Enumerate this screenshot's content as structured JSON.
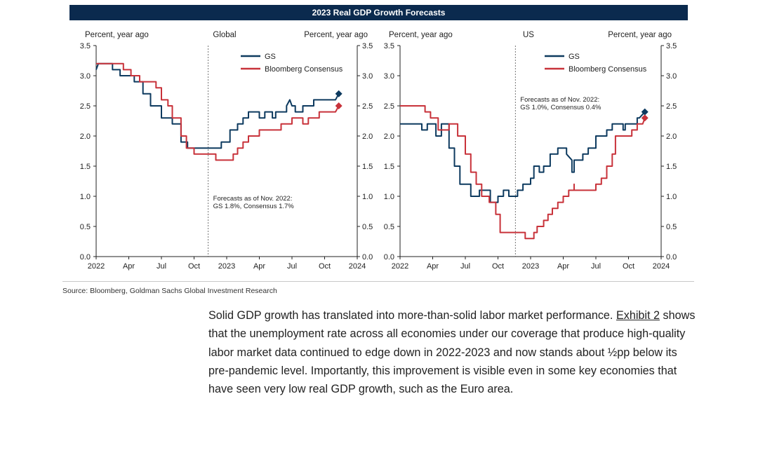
{
  "banner_title": "2023 Real GDP Growth Forecasts",
  "chart_data": [
    {
      "type": "line",
      "panel": "Global",
      "left_axis_label": "Percent, year ago",
      "right_axis_label": "Percent, year ago",
      "ylim": [
        0,
        3.5
      ],
      "yticks": [
        "0.0",
        "0.5",
        "1.0",
        "1.5",
        "2.0",
        "2.5",
        "3.0",
        "3.5"
      ],
      "xlim": [
        0,
        24
      ],
      "xticks": [
        {
          "x": 0,
          "label": "2022"
        },
        {
          "x": 3,
          "label": "Apr"
        },
        {
          "x": 6,
          "label": "Jul"
        },
        {
          "x": 9,
          "label": "Oct"
        },
        {
          "x": 12,
          "label": "2023"
        },
        {
          "x": 15,
          "label": "Apr"
        },
        {
          "x": 18,
          "label": "Jul"
        },
        {
          "x": 21,
          "label": "Oct"
        },
        {
          "x": 24,
          "label": "2024"
        }
      ],
      "marker_line_x": 10.3,
      "annotation": [
        "Forecasts as of Nov. 2022:",
        "GS 1.8%, Consensus 1.7%"
      ],
      "annotation_pos": "bottom-center",
      "legend_pos": "top-right",
      "series": [
        {
          "name": "GS",
          "color": "#0d3a5f",
          "points": [
            [
              0,
              3.1
            ],
            [
              0.2,
              3.2
            ],
            [
              1.5,
              3.2
            ],
            [
              1.5,
              3.1
            ],
            [
              2.2,
              3.1
            ],
            [
              2.2,
              3.0
            ],
            [
              3.5,
              3.0
            ],
            [
              3.5,
              2.9
            ],
            [
              4.3,
              2.9
            ],
            [
              4.3,
              2.7
            ],
            [
              5.0,
              2.7
            ],
            [
              5.0,
              2.5
            ],
            [
              6.0,
              2.5
            ],
            [
              6.0,
              2.3
            ],
            [
              7.0,
              2.3
            ],
            [
              7.0,
              2.2
            ],
            [
              7.8,
              2.2
            ],
            [
              7.8,
              1.9
            ],
            [
              8.4,
              1.9
            ],
            [
              8.4,
              1.8
            ],
            [
              11.5,
              1.8
            ],
            [
              11.5,
              1.9
            ],
            [
              12.3,
              1.9
            ],
            [
              12.3,
              2.1
            ],
            [
              13.0,
              2.1
            ],
            [
              13.0,
              2.2
            ],
            [
              13.5,
              2.2
            ],
            [
              13.5,
              2.3
            ],
            [
              14.0,
              2.3
            ],
            [
              14.0,
              2.4
            ],
            [
              15.0,
              2.4
            ],
            [
              15.0,
              2.3
            ],
            [
              15.5,
              2.3
            ],
            [
              15.5,
              2.4
            ],
            [
              16.2,
              2.4
            ],
            [
              16.2,
              2.3
            ],
            [
              16.5,
              2.3
            ],
            [
              16.5,
              2.4
            ],
            [
              17.5,
              2.4
            ],
            [
              17.5,
              2.5
            ],
            [
              17.8,
              2.6
            ],
            [
              18.0,
              2.5
            ],
            [
              18.3,
              2.5
            ],
            [
              18.3,
              2.4
            ],
            [
              19.0,
              2.4
            ],
            [
              19.0,
              2.5
            ],
            [
              20.0,
              2.5
            ],
            [
              20.0,
              2.6
            ],
            [
              22.0,
              2.6
            ],
            [
              22.3,
              2.7
            ]
          ],
          "end_marker": [
            22.3,
            2.7
          ]
        },
        {
          "name": "Bloomberg Consensus",
          "color": "#c8323a",
          "points": [
            [
              0,
              3.2
            ],
            [
              2.5,
              3.2
            ],
            [
              2.5,
              3.1
            ],
            [
              3.2,
              3.1
            ],
            [
              3.2,
              3.0
            ],
            [
              4.0,
              3.0
            ],
            [
              4.0,
              2.9
            ],
            [
              5.5,
              2.9
            ],
            [
              5.5,
              2.8
            ],
            [
              6.0,
              2.8
            ],
            [
              6.0,
              2.6
            ],
            [
              6.6,
              2.6
            ],
            [
              6.6,
              2.5
            ],
            [
              7.0,
              2.5
            ],
            [
              7.0,
              2.3
            ],
            [
              7.8,
              2.3
            ],
            [
              7.8,
              2.0
            ],
            [
              8.3,
              2.0
            ],
            [
              8.3,
              1.8
            ],
            [
              9.0,
              1.8
            ],
            [
              9.0,
              1.7
            ],
            [
              11.0,
              1.7
            ],
            [
              11.0,
              1.6
            ],
            [
              12.6,
              1.6
            ],
            [
              12.6,
              1.7
            ],
            [
              13.0,
              1.7
            ],
            [
              13.0,
              1.8
            ],
            [
              13.5,
              1.8
            ],
            [
              13.5,
              1.9
            ],
            [
              14.0,
              1.9
            ],
            [
              14.0,
              2.0
            ],
            [
              15.0,
              2.0
            ],
            [
              15.0,
              2.1
            ],
            [
              17.0,
              2.1
            ],
            [
              17.0,
              2.2
            ],
            [
              18.0,
              2.2
            ],
            [
              18.0,
              2.3
            ],
            [
              19.0,
              2.3
            ],
            [
              19.0,
              2.2
            ],
            [
              19.5,
              2.2
            ],
            [
              19.5,
              2.3
            ],
            [
              20.5,
              2.3
            ],
            [
              20.5,
              2.4
            ],
            [
              22.0,
              2.4
            ],
            [
              22.3,
              2.5
            ]
          ],
          "end_marker": [
            22.3,
            2.5
          ]
        }
      ]
    },
    {
      "type": "line",
      "panel": "US",
      "left_axis_label": "Percent, year ago",
      "right_axis_label": "Percent, year ago",
      "ylim": [
        0,
        3.5
      ],
      "yticks": [
        "0.0",
        "0.5",
        "1.0",
        "1.5",
        "2.0",
        "2.5",
        "3.0",
        "3.5"
      ],
      "xlim": [
        0,
        24
      ],
      "xticks": [
        {
          "x": 0,
          "label": "2022"
        },
        {
          "x": 3,
          "label": "Apr"
        },
        {
          "x": 6,
          "label": "Jul"
        },
        {
          "x": 9,
          "label": "Oct"
        },
        {
          "x": 12,
          "label": "2023"
        },
        {
          "x": 15,
          "label": "Apr"
        },
        {
          "x": 18,
          "label": "Jul"
        },
        {
          "x": 21,
          "label": "Oct"
        },
        {
          "x": 24,
          "label": "2024"
        }
      ],
      "marker_line_x": 10.6,
      "annotation": [
        "Forecasts as of Nov. 2022:",
        "GS 1.0%, Consensus 0.4%"
      ],
      "annotation_pos": "top-center",
      "legend_pos": "top-right",
      "series": [
        {
          "name": "GS",
          "color": "#0d3a5f",
          "points": [
            [
              0,
              2.2
            ],
            [
              2.0,
              2.2
            ],
            [
              2.0,
              2.1
            ],
            [
              2.5,
              2.1
            ],
            [
              2.5,
              2.2
            ],
            [
              3.3,
              2.2
            ],
            [
              3.3,
              2.0
            ],
            [
              3.8,
              2.0
            ],
            [
              3.8,
              2.2
            ],
            [
              4.5,
              2.2
            ],
            [
              4.5,
              1.8
            ],
            [
              5.0,
              1.8
            ],
            [
              5.0,
              1.5
            ],
            [
              5.5,
              1.5
            ],
            [
              5.5,
              1.2
            ],
            [
              6.5,
              1.2
            ],
            [
              6.5,
              1.0
            ],
            [
              7.3,
              1.0
            ],
            [
              7.3,
              1.1
            ],
            [
              8.3,
              1.1
            ],
            [
              8.3,
              0.9
            ],
            [
              9.0,
              0.9
            ],
            [
              9.0,
              1.0
            ],
            [
              9.5,
              1.0
            ],
            [
              9.5,
              1.1
            ],
            [
              10.0,
              1.1
            ],
            [
              10.0,
              1.0
            ],
            [
              10.8,
              1.0
            ],
            [
              10.8,
              1.1
            ],
            [
              11.3,
              1.1
            ],
            [
              11.3,
              1.2
            ],
            [
              12.0,
              1.2
            ],
            [
              12.0,
              1.3
            ],
            [
              12.3,
              1.3
            ],
            [
              12.3,
              1.5
            ],
            [
              12.8,
              1.5
            ],
            [
              12.8,
              1.4
            ],
            [
              13.2,
              1.4
            ],
            [
              13.2,
              1.5
            ],
            [
              13.8,
              1.5
            ],
            [
              13.8,
              1.7
            ],
            [
              14.5,
              1.7
            ],
            [
              14.5,
              1.8
            ],
            [
              15.3,
              1.8
            ],
            [
              15.3,
              1.7
            ],
            [
              15.8,
              1.6
            ],
            [
              15.8,
              1.4
            ],
            [
              16.0,
              1.4
            ],
            [
              16.0,
              1.6
            ],
            [
              16.8,
              1.6
            ],
            [
              16.8,
              1.7
            ],
            [
              17.3,
              1.7
            ],
            [
              17.3,
              1.8
            ],
            [
              18.0,
              1.8
            ],
            [
              18.0,
              2.0
            ],
            [
              19.0,
              2.0
            ],
            [
              19.0,
              2.1
            ],
            [
              19.5,
              2.1
            ],
            [
              19.5,
              2.2
            ],
            [
              20.5,
              2.2
            ],
            [
              20.5,
              2.1
            ],
            [
              20.7,
              2.1
            ],
            [
              20.7,
              2.2
            ],
            [
              21.8,
              2.2
            ],
            [
              21.8,
              2.3
            ],
            [
              22.0,
              2.3
            ],
            [
              22.5,
              2.4
            ]
          ],
          "end_marker": [
            22.5,
            2.4
          ]
        },
        {
          "name": "Bloomberg Consensus",
          "color": "#c8323a",
          "points": [
            [
              0,
              2.5
            ],
            [
              2.3,
              2.5
            ],
            [
              2.3,
              2.4
            ],
            [
              2.8,
              2.4
            ],
            [
              2.8,
              2.3
            ],
            [
              3.5,
              2.3
            ],
            [
              3.5,
              2.1
            ],
            [
              4.5,
              2.1
            ],
            [
              4.5,
              2.2
            ],
            [
              5.3,
              2.2
            ],
            [
              5.3,
              2.0
            ],
            [
              6.0,
              2.0
            ],
            [
              6.0,
              1.7
            ],
            [
              6.5,
              1.7
            ],
            [
              6.5,
              1.4
            ],
            [
              7.0,
              1.4
            ],
            [
              7.0,
              1.2
            ],
            [
              7.5,
              1.2
            ],
            [
              7.5,
              1.0
            ],
            [
              8.2,
              1.0
            ],
            [
              8.2,
              0.9
            ],
            [
              8.8,
              0.9
            ],
            [
              8.8,
              0.7
            ],
            [
              9.2,
              0.7
            ],
            [
              9.2,
              0.4
            ],
            [
              11.5,
              0.4
            ],
            [
              11.5,
              0.3
            ],
            [
              12.3,
              0.3
            ],
            [
              12.3,
              0.4
            ],
            [
              12.6,
              0.4
            ],
            [
              12.6,
              0.5
            ],
            [
              13.2,
              0.5
            ],
            [
              13.2,
              0.6
            ],
            [
              13.6,
              0.6
            ],
            [
              13.6,
              0.7
            ],
            [
              14.0,
              0.7
            ],
            [
              14.0,
              0.8
            ],
            [
              14.5,
              0.8
            ],
            [
              14.5,
              0.9
            ],
            [
              15.0,
              0.9
            ],
            [
              15.0,
              1.0
            ],
            [
              15.5,
              1.0
            ],
            [
              15.5,
              1.1
            ],
            [
              16.0,
              1.1
            ],
            [
              16.0,
              1.2
            ],
            [
              16.0,
              1.1
            ],
            [
              16.5,
              1.1
            ],
            [
              16.5,
              1.1
            ],
            [
              18.0,
              1.1
            ],
            [
              18.0,
              1.2
            ],
            [
              18.5,
              1.2
            ],
            [
              18.5,
              1.3
            ],
            [
              19.0,
              1.3
            ],
            [
              19.0,
              1.5
            ],
            [
              19.5,
              1.5
            ],
            [
              19.5,
              1.7
            ],
            [
              19.8,
              1.7
            ],
            [
              19.8,
              2.0
            ],
            [
              21.3,
              2.0
            ],
            [
              21.3,
              2.1
            ],
            [
              21.8,
              2.1
            ],
            [
              21.8,
              2.2
            ],
            [
              22.3,
              2.2
            ],
            [
              22.5,
              2.3
            ]
          ],
          "end_marker": [
            22.5,
            2.3
          ]
        }
      ]
    }
  ],
  "source": "Source: Bloomberg, Goldman Sachs Global Investment Research",
  "paragraph": {
    "before_link": "Solid GDP growth has translated into more-than-solid labor market performance. ",
    "link": "Exhibit 2",
    "after_link": " shows that the unemployment rate across all economies under our coverage that produce high-quality labor market data continued to edge down in 2022-2023 and now stands about ½pp below its pre-pandemic level.  Importantly, this improvement is visible even in some key economies that have seen very low real GDP growth, such as the Euro area."
  }
}
